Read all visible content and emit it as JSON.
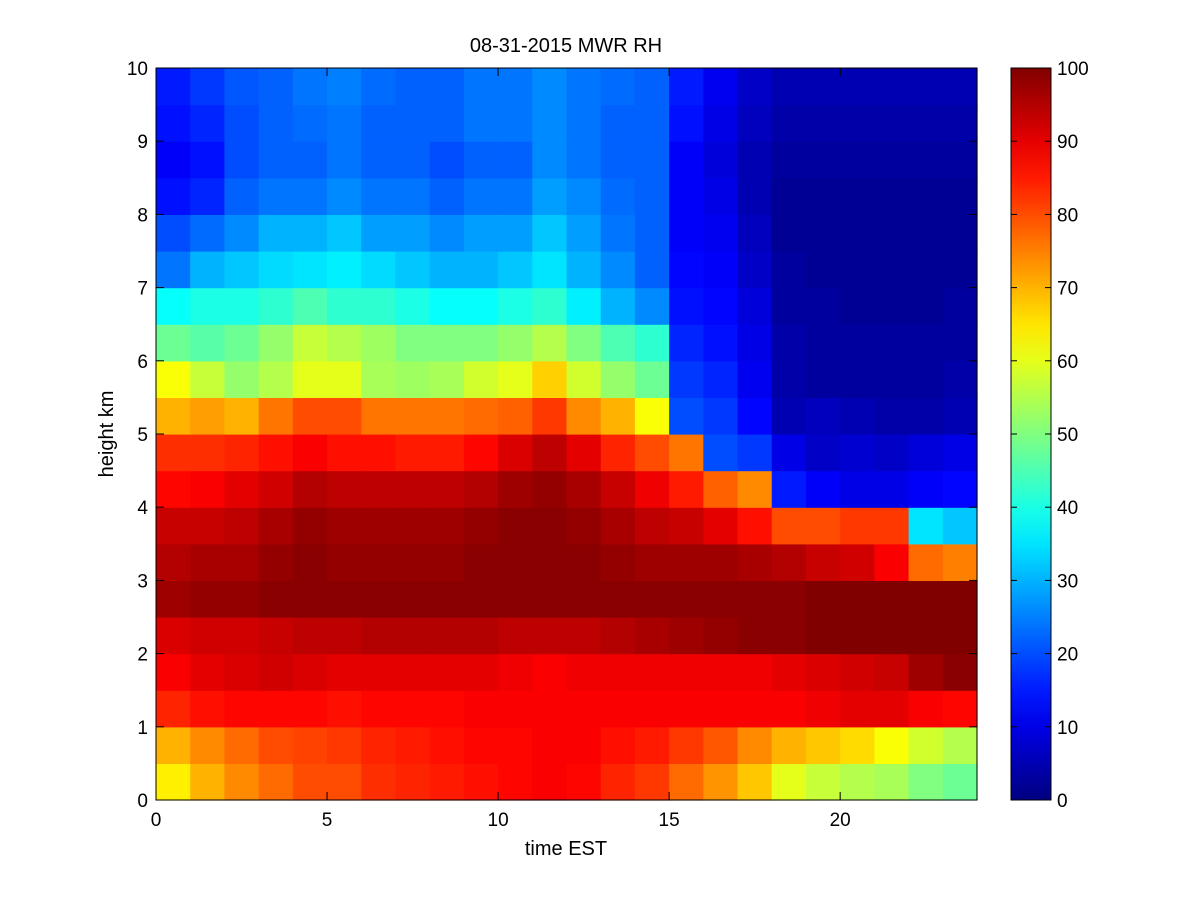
{
  "chart_data": {
    "type": "heatmap",
    "title": "08-31-2015 MWR RH",
    "xlabel": "time EST",
    "ylabel": "height km",
    "xlim": [
      0,
      24
    ],
    "ylim": [
      0,
      10
    ],
    "xticks": [
      0,
      5,
      10,
      15,
      20
    ],
    "yticks": [
      0,
      1,
      2,
      3,
      4,
      5,
      6,
      7,
      8,
      9,
      10
    ],
    "colorbar": {
      "min": 0,
      "max": 100,
      "ticks": [
        0,
        10,
        20,
        30,
        40,
        50,
        60,
        70,
        80,
        90,
        100
      ],
      "colormap": "jet"
    },
    "time_hours": [
      0,
      1,
      2,
      3,
      4,
      5,
      6,
      7,
      8,
      9,
      10,
      11,
      12,
      13,
      14,
      15,
      16,
      17,
      18,
      19,
      20,
      21,
      22,
      23
    ],
    "height_km": [
      0.0,
      0.5,
      1.0,
      1.5,
      2.0,
      2.5,
      3.0,
      3.5,
      4.0,
      4.5,
      5.0,
      5.5,
      6.0,
      6.5,
      7.0,
      7.5,
      8.0,
      8.5,
      9.0,
      9.5
    ],
    "rh_percent": [
      [
        64,
        70,
        74,
        77,
        80,
        80,
        83,
        84,
        85,
        86,
        87,
        88,
        87,
        84,
        82,
        77,
        73,
        68,
        60,
        57,
        55,
        54,
        50,
        48
      ],
      [
        70,
        74,
        77,
        80,
        81,
        82,
        84,
        85,
        86,
        87,
        87,
        88,
        88,
        86,
        85,
        82,
        79,
        74,
        70,
        68,
        66,
        62,
        58,
        55
      ],
      [
        84,
        86,
        87,
        87,
        87,
        86,
        87,
        87,
        87,
        88,
        88,
        88,
        88,
        88,
        88,
        88,
        88,
        88,
        88,
        89,
        90,
        90,
        88,
        87
      ],
      [
        88,
        90,
        91,
        92,
        91,
        90,
        90,
        90,
        90,
        90,
        89,
        88,
        89,
        89,
        89,
        89,
        89,
        89,
        90,
        91,
        92,
        93,
        97,
        99
      ],
      [
        91,
        92,
        92,
        93,
        94,
        94,
        95,
        95,
        95,
        95,
        94,
        94,
        94,
        95,
        96,
        97,
        98,
        99,
        99,
        100,
        100,
        100,
        100,
        100
      ],
      [
        97,
        98,
        98,
        99,
        99,
        99,
        99,
        99,
        99,
        99,
        99,
        99,
        99,
        99,
        99,
        99,
        99,
        99,
        99,
        100,
        100,
        100,
        100,
        100
      ],
      [
        95,
        96,
        96,
        98,
        99,
        98,
        98,
        98,
        98,
        99,
        99,
        99,
        99,
        98,
        97,
        97,
        97,
        96,
        95,
        93,
        92,
        88,
        77,
        75
      ],
      [
        93,
        93,
        94,
        96,
        98,
        97,
        97,
        97,
        97,
        98,
        99,
        99,
        98,
        96,
        94,
        93,
        90,
        86,
        80,
        80,
        82,
        82,
        35,
        32
      ],
      [
        87,
        88,
        90,
        92,
        95,
        94,
        94,
        94,
        94,
        95,
        97,
        98,
        96,
        93,
        89,
        85,
        78,
        74,
        15,
        12,
        10,
        10,
        12,
        13
      ],
      [
        83,
        83,
        84,
        86,
        88,
        86,
        86,
        85,
        85,
        87,
        91,
        94,
        90,
        84,
        80,
        76,
        20,
        18,
        10,
        7,
        8,
        7,
        9,
        10
      ],
      [
        70,
        72,
        70,
        76,
        80,
        80,
        76,
        76,
        76,
        77,
        78,
        82,
        74,
        70,
        62,
        20,
        18,
        13,
        5,
        6,
        5,
        4,
        4,
        5
      ],
      [
        62,
        57,
        52,
        55,
        60,
        60,
        54,
        53,
        54,
        58,
        60,
        67,
        58,
        52,
        48,
        18,
        16,
        11,
        4,
        3,
        3,
        3,
        3,
        4
      ],
      [
        48,
        46,
        48,
        52,
        57,
        55,
        53,
        50,
        50,
        50,
        52,
        55,
        50,
        45,
        42,
        16,
        14,
        10,
        4,
        3,
        3,
        3,
        3,
        3
      ],
      [
        38,
        40,
        40,
        42,
        45,
        42,
        42,
        40,
        38,
        38,
        40,
        42,
        36,
        30,
        26,
        14,
        13,
        9,
        3,
        3,
        2,
        2,
        2,
        3
      ],
      [
        24,
        30,
        32,
        34,
        35,
        36,
        34,
        32,
        30,
        30,
        32,
        35,
        30,
        26,
        22,
        13,
        12,
        7,
        3,
        2,
        2,
        2,
        2,
        2
      ],
      [
        20,
        23,
        26,
        30,
        30,
        32,
        28,
        28,
        26,
        28,
        28,
        32,
        28,
        24,
        22,
        12,
        11,
        6,
        2,
        2,
        2,
        2,
        2,
        2
      ],
      [
        14,
        16,
        22,
        24,
        24,
        26,
        24,
        24,
        22,
        24,
        24,
        28,
        26,
        23,
        22,
        12,
        10,
        5,
        2,
        2,
        2,
        2,
        2,
        2
      ],
      [
        12,
        14,
        20,
        22,
        22,
        24,
        22,
        22,
        20,
        22,
        22,
        26,
        24,
        22,
        22,
        12,
        9,
        5,
        3,
        3,
        3,
        3,
        3,
        3
      ],
      [
        14,
        16,
        20,
        22,
        23,
        24,
        22,
        22,
        22,
        24,
        24,
        26,
        24,
        22,
        22,
        14,
        10,
        6,
        4,
        4,
        4,
        4,
        4,
        4
      ],
      [
        15,
        18,
        21,
        22,
        24,
        25,
        23,
        22,
        22,
        24,
        24,
        26,
        24,
        23,
        22,
        15,
        11,
        7,
        5,
        5,
        5,
        5,
        5,
        5
      ]
    ]
  }
}
